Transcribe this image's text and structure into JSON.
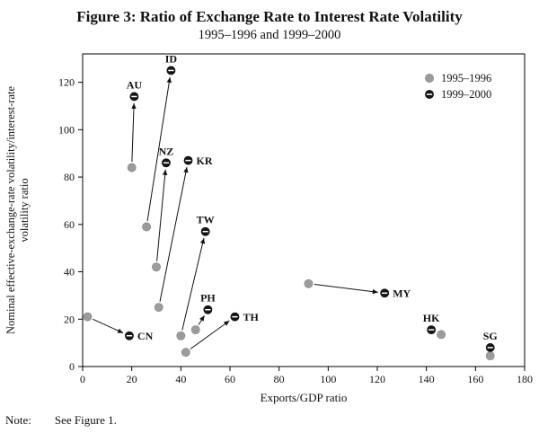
{
  "figure": {
    "title": "Figure 3: Ratio of Exchange Rate to Interest Rate Volatility",
    "subtitle": "1995–1996 and 1999–2000"
  },
  "note": {
    "label": "Note:",
    "text": "See Figure 1."
  },
  "chart_data": {
    "type": "scatter",
    "title": "Figure 3: Ratio of Exchange Rate to Interest Rate Volatility",
    "subtitle": "1995–1996 and 1999–2000",
    "xlabel": "Exports/GDP ratio",
    "ylabel": "Nominal effective-exchange-rate volatility/interest-rate volatility ratio",
    "ylabel_lines": [
      "Nominal effective-exchange-rate volatility/interest-rate",
      "volatility ratio"
    ],
    "xlim": [
      0,
      180
    ],
    "ylim": [
      0,
      132
    ],
    "xticks": [
      0,
      20,
      40,
      60,
      80,
      100,
      120,
      140,
      160,
      180
    ],
    "yticks": [
      0,
      20,
      40,
      60,
      80,
      100,
      120
    ],
    "grid": false,
    "legend_position": "top-right",
    "series": [
      {
        "name": "1995–1996",
        "color": "#9c9c9c"
      },
      {
        "name": "1999–2000",
        "color": "#161616"
      }
    ],
    "points": [
      {
        "country": "AU",
        "v1995": [
          20,
          84
        ],
        "v1999": [
          21,
          114
        ],
        "label_pos": "above"
      },
      {
        "country": "ID",
        "v1995": [
          26,
          59
        ],
        "v1999": [
          36,
          125
        ],
        "label_pos": "above"
      },
      {
        "country": "NZ",
        "v1995": [
          30,
          42
        ],
        "v1999": [
          34,
          86
        ],
        "label_pos": "above"
      },
      {
        "country": "KR",
        "v1995": [
          31,
          25
        ],
        "v1999": [
          43,
          87
        ],
        "label_pos": "right"
      },
      {
        "country": "TW",
        "v1995": [
          40,
          13
        ],
        "v1999": [
          50,
          57
        ],
        "label_pos": "above"
      },
      {
        "country": "PH",
        "v1995": [
          46,
          15.5
        ],
        "v1999": [
          51,
          24
        ],
        "label_pos": "above"
      },
      {
        "country": "TH",
        "v1995": [
          42,
          6
        ],
        "v1999": [
          62,
          21
        ],
        "label_pos": "right"
      },
      {
        "country": "CN",
        "v1995": [
          2,
          21
        ],
        "v1999": [
          19,
          13
        ],
        "label_pos": "right"
      },
      {
        "country": "MY",
        "v1995": [
          92,
          35
        ],
        "v1999": [
          123,
          31
        ],
        "label_pos": "right"
      },
      {
        "country": "HK",
        "v1995": [
          146,
          13.5
        ],
        "v1999": [
          142,
          15.5
        ],
        "label_pos": "above"
      },
      {
        "country": "SG",
        "v1995": [
          166,
          4.5
        ],
        "v1999": [
          166,
          8
        ],
        "label_pos": "above"
      }
    ]
  }
}
